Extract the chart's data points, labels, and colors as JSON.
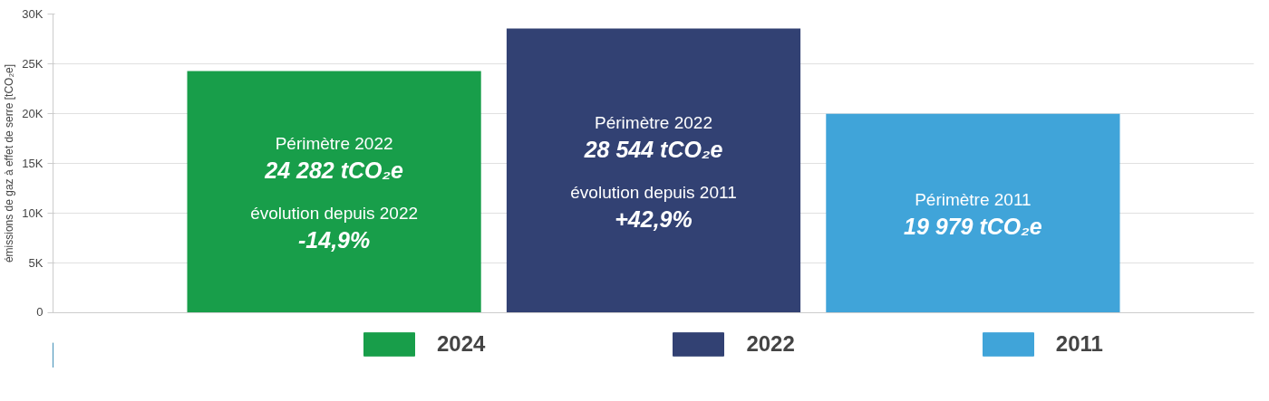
{
  "chart_data": {
    "type": "bar",
    "ylabel": "émissions de gaz à effet de serre [tCO₂e]",
    "categories": [
      null,
      null,
      null
    ],
    "series": [
      {
        "name": "2024",
        "color": "#189e4a",
        "values": [
          24282,
          null,
          null
        ],
        "value_labels": [
          "24 282 tCO₂e",
          null,
          null
        ]
      },
      {
        "name": "2022",
        "color": "#324173",
        "values": [
          null,
          28544,
          null
        ],
        "value_labels": [
          null,
          "28 544 tCO₂e",
          null
        ]
      },
      {
        "name": "2011",
        "color": "#40a4d9",
        "values": [
          null,
          null,
          19979
        ],
        "value_labels": [
          null,
          null,
          "19 979 tCO₂e"
        ]
      }
    ],
    "annotations": [
      "Périmètre 2022",
      "évolution depuis 2022",
      "-14,9%",
      "Périmètre 2022",
      "évolution depuis 2011",
      "+42,9%",
      "Périmètre 2011"
    ],
    "ylim": [
      0,
      30000
    ],
    "yticks": [
      0,
      {
        "value": 5000,
        "label": "5K"
      },
      {
        "value": 10000,
        "label": "10K"
      },
      {
        "value": 15000,
        "label": "15K"
      },
      {
        "value": 20000,
        "label": "20K"
      },
      {
        "value": 25000,
        "label": "25K"
      },
      {
        "value": 30000,
        "label": "30K"
      }
    ],
    "grid": "y",
    "legend": "bottom"
  }
}
